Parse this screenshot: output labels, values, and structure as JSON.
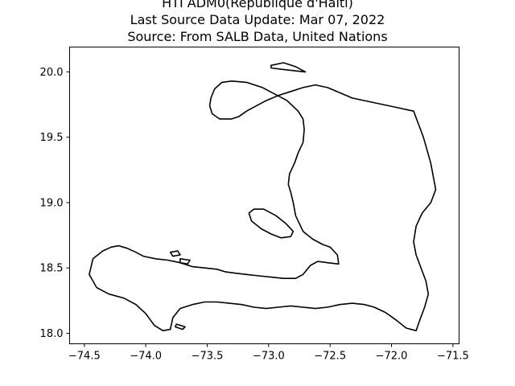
{
  "title": {
    "line1": "HTI ADM0(République d'Haïti)",
    "line2": "Last Source Data Update: Mar 07, 2022",
    "line3": "Source: From SALB Data, United Nations"
  },
  "chart_data": {
    "type": "map",
    "region": "Haiti (ADM0)",
    "xlabel": "",
    "ylabel": "",
    "xlim": [
      -74.62,
      -71.45
    ],
    "ylim": [
      17.92,
      20.19
    ],
    "x_ticks": [
      -74.5,
      -74.0,
      -73.5,
      -73.0,
      -72.5,
      -72.0,
      -71.5
    ],
    "x_tick_labels": [
      "−74.5",
      "−74.0",
      "−73.5",
      "−73.0",
      "−72.5",
      "−72.0",
      "−71.5"
    ],
    "y_ticks": [
      18.0,
      18.5,
      19.0,
      19.5,
      20.0
    ],
    "y_tick_labels": [
      "18.0",
      "18.5",
      "19.0",
      "19.5",
      "20.0"
    ],
    "grid": false,
    "outline_color": "#000000",
    "shapes": [
      {
        "name": "mainland",
        "closed": true,
        "points": [
          [
            -74.46,
            18.45
          ],
          [
            -74.43,
            18.57
          ],
          [
            -74.35,
            18.63
          ],
          [
            -74.28,
            18.66
          ],
          [
            -74.22,
            18.67
          ],
          [
            -74.15,
            18.65
          ],
          [
            -74.08,
            18.62
          ],
          [
            -74.02,
            18.59
          ],
          [
            -73.92,
            18.57
          ],
          [
            -73.82,
            18.56
          ],
          [
            -73.72,
            18.54
          ],
          [
            -73.62,
            18.51
          ],
          [
            -73.52,
            18.5
          ],
          [
            -73.42,
            18.49
          ],
          [
            -73.35,
            18.47
          ],
          [
            -73.27,
            18.46
          ],
          [
            -73.18,
            18.45
          ],
          [
            -73.08,
            18.44
          ],
          [
            -72.98,
            18.43
          ],
          [
            -72.88,
            18.42
          ],
          [
            -72.78,
            18.42
          ],
          [
            -72.72,
            18.45
          ],
          [
            -72.66,
            18.52
          ],
          [
            -72.6,
            18.55
          ],
          [
            -72.52,
            18.54
          ],
          [
            -72.43,
            18.53
          ],
          [
            -72.44,
            18.6
          ],
          [
            -72.5,
            18.66
          ],
          [
            -72.56,
            18.68
          ],
          [
            -72.64,
            18.72
          ],
          [
            -72.72,
            18.78
          ],
          [
            -72.78,
            18.9
          ],
          [
            -72.8,
            19.0
          ],
          [
            -72.82,
            19.08
          ],
          [
            -72.84,
            19.14
          ],
          [
            -72.83,
            19.22
          ],
          [
            -72.79,
            19.3
          ],
          [
            -72.76,
            19.38
          ],
          [
            -72.72,
            19.46
          ],
          [
            -72.71,
            19.56
          ],
          [
            -72.72,
            19.64
          ],
          [
            -72.76,
            19.7
          ],
          [
            -72.85,
            19.78
          ],
          [
            -72.93,
            19.82
          ],
          [
            -73.05,
            19.88
          ],
          [
            -73.18,
            19.92
          ],
          [
            -73.3,
            19.93
          ],
          [
            -73.38,
            19.92
          ],
          [
            -73.44,
            19.87
          ],
          [
            -73.47,
            19.8
          ],
          [
            -73.48,
            19.74
          ],
          [
            -73.46,
            19.68
          ],
          [
            -73.4,
            19.64
          ],
          [
            -73.3,
            19.64
          ],
          [
            -73.24,
            19.66
          ],
          [
            -73.18,
            19.7
          ],
          [
            -73.1,
            19.74
          ],
          [
            -73.02,
            19.78
          ],
          [
            -72.92,
            19.82
          ],
          [
            -72.82,
            19.85
          ],
          [
            -72.72,
            19.88
          ],
          [
            -72.62,
            19.9
          ],
          [
            -72.52,
            19.88
          ],
          [
            -72.42,
            19.84
          ],
          [
            -72.32,
            19.8
          ],
          [
            -72.22,
            19.78
          ],
          [
            -72.12,
            19.76
          ],
          [
            -72.02,
            19.74
          ],
          [
            -71.92,
            19.72
          ],
          [
            -71.82,
            19.7
          ],
          [
            -71.78,
            19.6
          ],
          [
            -71.74,
            19.5
          ],
          [
            -71.71,
            19.4
          ],
          [
            -71.68,
            19.3
          ],
          [
            -71.66,
            19.2
          ],
          [
            -71.64,
            19.1
          ],
          [
            -71.68,
            19.0
          ],
          [
            -71.75,
            18.92
          ],
          [
            -71.8,
            18.82
          ],
          [
            -71.82,
            18.7
          ],
          [
            -71.8,
            18.6
          ],
          [
            -71.76,
            18.5
          ],
          [
            -71.72,
            18.4
          ],
          [
            -71.7,
            18.3
          ],
          [
            -71.73,
            18.2
          ],
          [
            -71.77,
            18.1
          ],
          [
            -71.8,
            18.02
          ],
          [
            -71.88,
            18.04
          ],
          [
            -71.96,
            18.1
          ],
          [
            -72.05,
            18.16
          ],
          [
            -72.14,
            18.2
          ],
          [
            -72.22,
            18.22
          ],
          [
            -72.32,
            18.23
          ],
          [
            -72.42,
            18.22
          ],
          [
            -72.52,
            18.2
          ],
          [
            -72.62,
            18.19
          ],
          [
            -72.72,
            18.2
          ],
          [
            -72.82,
            18.21
          ],
          [
            -72.92,
            18.2
          ],
          [
            -73.02,
            18.19
          ],
          [
            -73.12,
            18.2
          ],
          [
            -73.22,
            18.22
          ],
          [
            -73.32,
            18.23
          ],
          [
            -73.42,
            18.24
          ],
          [
            -73.52,
            18.24
          ],
          [
            -73.62,
            18.22
          ],
          [
            -73.72,
            18.19
          ],
          [
            -73.78,
            18.12
          ],
          [
            -73.8,
            18.03
          ],
          [
            -73.86,
            18.02
          ],
          [
            -73.93,
            18.06
          ],
          [
            -74.0,
            18.15
          ],
          [
            -74.08,
            18.22
          ],
          [
            -74.18,
            18.27
          ],
          [
            -74.3,
            18.3
          ],
          [
            -74.4,
            18.35
          ]
        ]
      },
      {
        "name": "gonave-island",
        "closed": true,
        "points": [
          [
            -73.16,
            18.92
          ],
          [
            -73.12,
            18.95
          ],
          [
            -73.04,
            18.95
          ],
          [
            -72.94,
            18.9
          ],
          [
            -72.86,
            18.84
          ],
          [
            -72.8,
            18.78
          ],
          [
            -72.82,
            18.74
          ],
          [
            -72.9,
            18.73
          ],
          [
            -72.98,
            18.76
          ],
          [
            -73.06,
            18.8
          ],
          [
            -73.14,
            18.86
          ]
        ]
      },
      {
        "name": "tortuga-island",
        "closed": true,
        "points": [
          [
            -72.98,
            20.05
          ],
          [
            -72.88,
            20.07
          ],
          [
            -72.78,
            20.04
          ],
          [
            -72.7,
            20.0
          ],
          [
            -72.8,
            20.01
          ],
          [
            -72.9,
            20.02
          ],
          [
            -72.98,
            20.03
          ]
        ]
      },
      {
        "name": "cayemites-island-1",
        "closed": true,
        "points": [
          [
            -73.8,
            18.62
          ],
          [
            -73.74,
            18.63
          ],
          [
            -73.72,
            18.6
          ],
          [
            -73.78,
            18.59
          ]
        ]
      },
      {
        "name": "cayemites-island-2",
        "closed": true,
        "points": [
          [
            -73.72,
            18.57
          ],
          [
            -73.64,
            18.56
          ],
          [
            -73.66,
            18.53
          ],
          [
            -73.72,
            18.54
          ]
        ]
      },
      {
        "name": "south-cay",
        "closed": true,
        "points": [
          [
            -73.75,
            18.07
          ],
          [
            -73.68,
            18.05
          ],
          [
            -73.7,
            18.03
          ],
          [
            -73.76,
            18.05
          ]
        ]
      }
    ]
  }
}
